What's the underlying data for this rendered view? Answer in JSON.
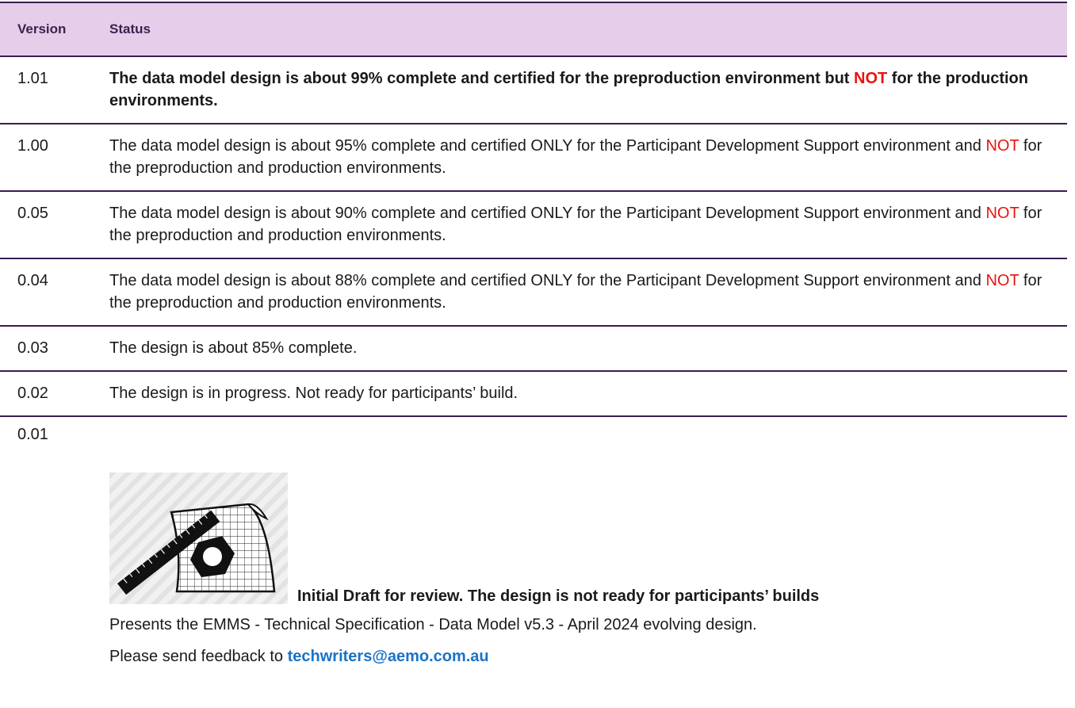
{
  "table": {
    "headers": [
      "Version",
      "Status"
    ],
    "rows": [
      {
        "version": "1.01",
        "bold": true,
        "status": [
          {
            "text": "The data model design is about 99% complete and certified for the preproduction environment but "
          },
          {
            "text": "NOT",
            "color": "#e8140e"
          },
          {
            "text": " for the production environments."
          }
        ]
      },
      {
        "version": "1.00",
        "status": [
          {
            "text": "The data model design is about 95% complete and certified ONLY for the Participant Development Support environment and "
          },
          {
            "text": "NOT",
            "color": "#e8140e"
          },
          {
            "text": " for the preproduction and production environments."
          }
        ]
      },
      {
        "version": "0.05",
        "status": [
          {
            "text": "The data model design is about 90% complete and certified ONLY for the Participant Development Support environment and "
          },
          {
            "text": "NOT",
            "color": "#e8140e"
          },
          {
            "text": " for the preproduction and production environments."
          }
        ]
      },
      {
        "version": "0.04",
        "status": [
          {
            "text": "The data model design is about 88% complete and certified ONLY for the Participant Development Support environment and "
          },
          {
            "text": "NOT",
            "color": "#e8140e"
          },
          {
            "text": " for the preproduction and production environments."
          }
        ]
      },
      {
        "version": "0.03",
        "status": [
          {
            "text": "The design is about 85% complete."
          }
        ]
      },
      {
        "version": "0.02",
        "status": [
          {
            "text": "The design is in progress. Not ready for participants’ build."
          }
        ]
      }
    ],
    "last_row": {
      "version": "0.01",
      "caption": "Initial Draft for review. The design is not ready for participants’ builds",
      "note": "Presents the EMMS - Technical Specification - Data Model v5.3 - April 2024 evolving design.",
      "feedback": "Please send feedback to ",
      "email": "techwriters@aemo.com.au"
    }
  }
}
